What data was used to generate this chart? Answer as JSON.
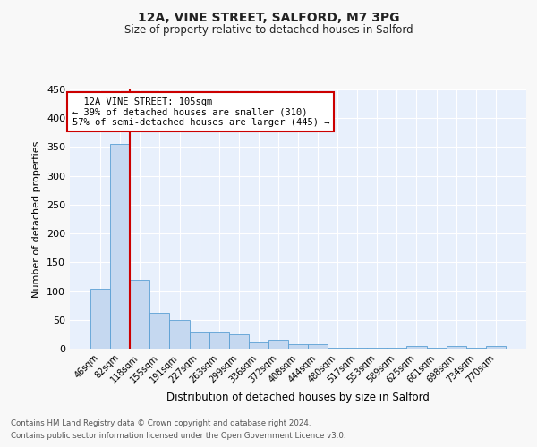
{
  "title1": "12A, VINE STREET, SALFORD, M7 3PG",
  "title2": "Size of property relative to detached houses in Salford",
  "xlabel": "Distribution of detached houses by size in Salford",
  "ylabel": "Number of detached properties",
  "footnote1": "Contains HM Land Registry data © Crown copyright and database right 2024.",
  "footnote2": "Contains public sector information licensed under the Open Government Licence v3.0.",
  "bar_labels": [
    "46sqm",
    "82sqm",
    "118sqm",
    "155sqm",
    "191sqm",
    "227sqm",
    "263sqm",
    "299sqm",
    "336sqm",
    "372sqm",
    "408sqm",
    "444sqm",
    "480sqm",
    "517sqm",
    "553sqm",
    "589sqm",
    "625sqm",
    "661sqm",
    "698sqm",
    "734sqm",
    "770sqm"
  ],
  "bar_values": [
    104,
    356,
    120,
    62,
    49,
    30,
    29,
    25,
    11,
    15,
    7,
    7,
    2,
    1,
    1,
    1,
    4,
    1,
    4,
    1,
    4
  ],
  "bar_color": "#c5d8f0",
  "bar_edge_color": "#5a9fd4",
  "bg_color": "#e8f0fc",
  "fig_bg_color": "#f8f8f8",
  "grid_color": "#ffffff",
  "vline_x": 1.5,
  "vline_color": "#cc0000",
  "annotation_title": "12A VINE STREET: 105sqm",
  "annotation_line1": "← 39% of detached houses are smaller (310)",
  "annotation_line2": "57% of semi-detached houses are larger (445) →",
  "annotation_box_color": "#ffffff",
  "annotation_edge_color": "#cc0000",
  "ylim": [
    0,
    450
  ],
  "yticks": [
    0,
    50,
    100,
    150,
    200,
    250,
    300,
    350,
    400,
    450
  ]
}
